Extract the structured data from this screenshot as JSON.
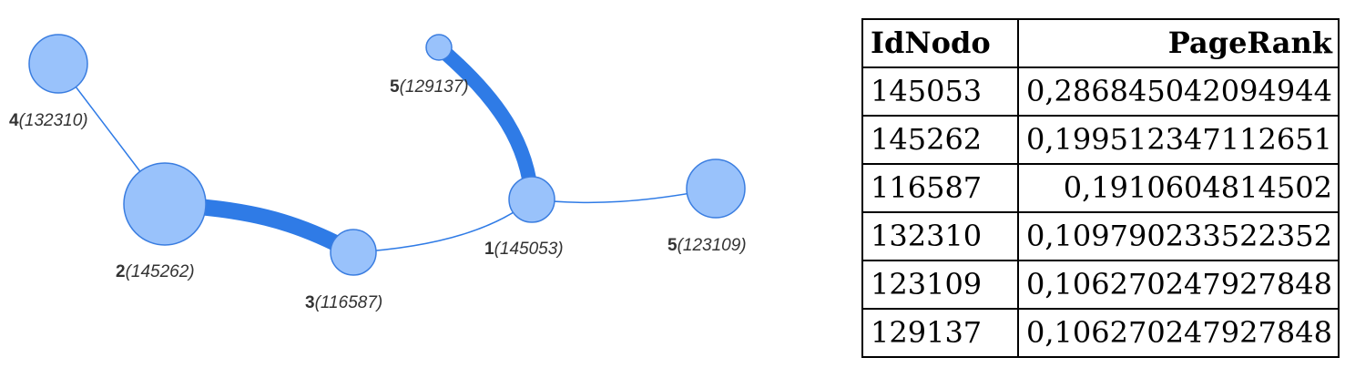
{
  "graph": {
    "nodes": [
      {
        "key": "n1",
        "num": "1",
        "id": "(145053)"
      },
      {
        "key": "n2",
        "num": "2",
        "id": "(145262)"
      },
      {
        "key": "n3",
        "num": "3",
        "id": "(116587)"
      },
      {
        "key": "n4",
        "num": "4",
        "id": "(132310)"
      },
      {
        "key": "n5a",
        "num": "5",
        "id": "(129137)"
      },
      {
        "key": "n5b",
        "num": "5",
        "id": "(123109)"
      }
    ],
    "edges": [
      {
        "from": "n2",
        "to": "n3",
        "weight": "heavy"
      },
      {
        "from": "n1",
        "to": "n5a",
        "weight": "heavy"
      },
      {
        "from": "n4",
        "to": "n2",
        "weight": "light"
      },
      {
        "from": "n3",
        "to": "n1",
        "weight": "light"
      },
      {
        "from": "n1",
        "to": "n5b",
        "weight": "light"
      }
    ],
    "colors": {
      "node_fill": "#99c2fb",
      "node_stroke": "#3a7de0",
      "edge": "#2f7be6"
    }
  },
  "table": {
    "headers": [
      "IdNodo",
      "PageRank"
    ],
    "rows": [
      [
        "145053",
        "0,286845042094944"
      ],
      [
        "145262",
        "0,199512347112651"
      ],
      [
        "116587",
        "0,1910604814502"
      ],
      [
        "132310",
        "0,109790233522352"
      ],
      [
        "123109",
        "0,106270247927848"
      ],
      [
        "129137",
        "0,106270247927848"
      ]
    ]
  }
}
